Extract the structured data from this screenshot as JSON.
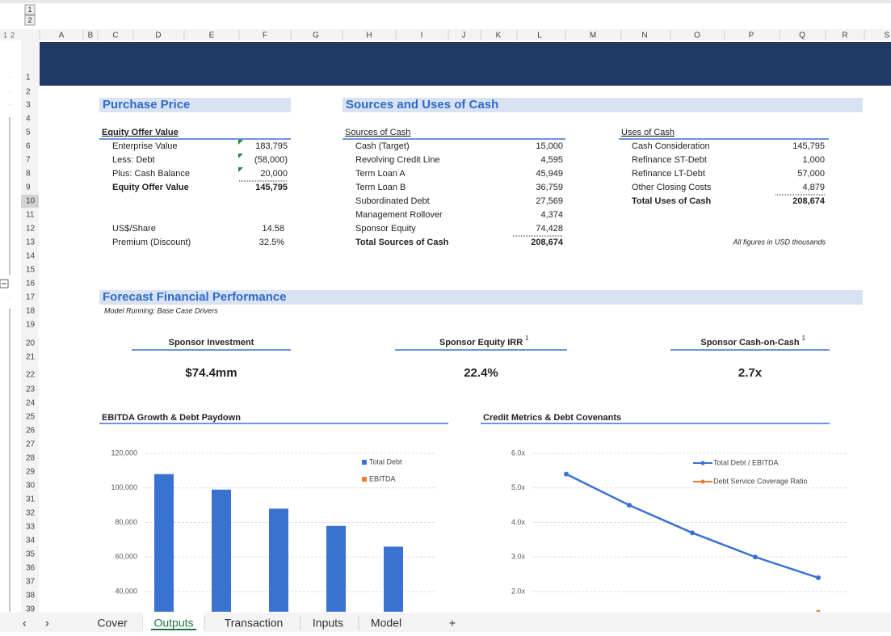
{
  "outline_levels": [
    "1",
    "2"
  ],
  "columns": [
    "A",
    "B",
    "C",
    "D",
    "E",
    "F",
    "G",
    "H",
    "I",
    "J",
    "K",
    "L",
    "M",
    "N",
    "O",
    "P",
    "Q",
    "R",
    "S"
  ],
  "rows": [
    "1",
    "2",
    "3",
    "4",
    "5",
    "6",
    "7",
    "8",
    "9",
    "10",
    "11",
    "12",
    "13",
    "14",
    "15",
    "16",
    "17",
    "18",
    "19",
    "20",
    "21",
    "22",
    "23",
    "24",
    "25",
    "26",
    "27",
    "28",
    "29",
    "30",
    "31",
    "32",
    "33",
    "34",
    "35",
    "36",
    "37",
    "38",
    "39"
  ],
  "purchase_price": {
    "title": "Purchase Price",
    "header": "Equity Offer Value",
    "rows": [
      [
        "Enterprise Value",
        "183,795"
      ],
      [
        "Less: Debt",
        "(58,000)"
      ],
      [
        "Plus: Cash Balance",
        "20,000"
      ],
      [
        "Equity Offer Value",
        "145,795"
      ]
    ],
    "per_share": [
      [
        "US$/Share",
        "14.58"
      ],
      [
        "Premium (Discount)",
        "32.5%"
      ]
    ]
  },
  "sources_uses": {
    "title": "Sources and Uses of Cash",
    "sources_header": "Sources of Cash",
    "sources": [
      [
        "Cash (Target)",
        "15,000"
      ],
      [
        "Revolving Credit Line",
        "4,595"
      ],
      [
        "Term Loan A",
        "45,949"
      ],
      [
        "Term Loan B",
        "36,759"
      ],
      [
        "Subordinated Debt",
        "27,569"
      ],
      [
        "Management Rollover",
        "4,374"
      ],
      [
        "Sponsor Equity",
        "74,428"
      ],
      [
        "Total Sources of Cash",
        "208,674"
      ]
    ],
    "uses_header": "Uses of Cash",
    "uses": [
      [
        "Cash Consideration",
        "145,795"
      ],
      [
        "Refinance ST-Debt",
        "1,000"
      ],
      [
        "Refinance LT-Debt",
        "57,000"
      ],
      [
        "Other Closing Costs",
        "4,879"
      ],
      [
        "Total Uses of Cash",
        "208,674"
      ]
    ],
    "note": "All figures in USD thousands"
  },
  "forecast": {
    "title": "Forecast Financial Performance",
    "subtitle": "Model Running: Base Case Drivers",
    "kpis": [
      {
        "label": "Sponsor Investment",
        "value": "$74.4mm"
      },
      {
        "label": "Sponsor Equity IRR",
        "footnote": "1",
        "value": "22.4%"
      },
      {
        "label": "Sponsor Cash-on-Cash",
        "footnote": "1",
        "value": "2.7x"
      }
    ]
  },
  "chart_data": [
    {
      "type": "bar",
      "title": "EBITDA Growth & Debt Paydown",
      "categories": [
        null,
        null,
        null,
        null,
        null
      ],
      "series": [
        {
          "name": "Total Debt",
          "color": "#3a72d2",
          "values": [
            108000,
            99000,
            88000,
            78000,
            66000
          ]
        },
        {
          "name": "EBITDA",
          "color": "#ed7d31",
          "values": [
            null,
            null,
            null,
            null,
            null
          ]
        }
      ],
      "ylim": [
        0,
        120000
      ],
      "yticks": [
        {
          "value": 40000,
          "label": "40,000"
        },
        {
          "value": 60000,
          "label": "60,000"
        },
        {
          "value": 80000,
          "label": "80,000"
        },
        {
          "value": 100000,
          "label": "100,000"
        },
        {
          "value": 120000,
          "label": "120,000"
        }
      ],
      "grid": true
    },
    {
      "type": "line",
      "title": "Credit Metrics & Debt Covenants",
      "categories": [
        null,
        null,
        null,
        null,
        null
      ],
      "series": [
        {
          "name": "Total Debt / EBITDA",
          "color": "#3a72d2",
          "values": [
            5.4,
            4.5,
            3.7,
            3.0,
            2.4
          ]
        },
        {
          "name": "Debt Service Coverage Ratio",
          "color": "#ed7d31",
          "values": [
            null,
            null,
            null,
            null,
            1.4
          ]
        }
      ],
      "ylim": [
        0,
        6
      ],
      "yticks": [
        {
          "value": 2,
          "label": "2.0x"
        },
        {
          "value": 3,
          "label": "3.0x"
        },
        {
          "value": 4,
          "label": "4.0x"
        },
        {
          "value": 5,
          "label": "5.0x"
        },
        {
          "value": 6,
          "label": "6.0x"
        }
      ],
      "grid": true
    }
  ],
  "tabs": [
    "Cover",
    "Outputs",
    "Transaction",
    "Inputs",
    "Model",
    "+"
  ],
  "active_tab": "Outputs"
}
